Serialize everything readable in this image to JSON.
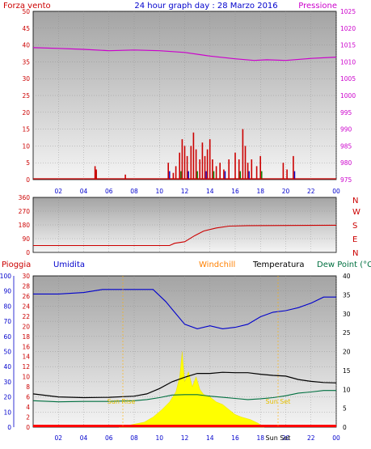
{
  "header": {
    "left": "Forza vento",
    "center": "24 hour graph day : 28 Marzo 2016",
    "right": "Pressione"
  },
  "compass": [
    "N",
    "W",
    "S",
    "E",
    "N"
  ],
  "bottom_legend": {
    "rain": "Pioggia",
    "humidity": "Umidita",
    "windchill": "Windchill",
    "temperature": "Temperatura",
    "dewpoint": "Dew Point (°C"
  },
  "annotations": {
    "sunrise": "Sun Rise",
    "sunset": "Sun Set",
    "sunset_axis": "Sun Set"
  },
  "colors": {
    "wind": "#cc0000",
    "gust_green": "#008000",
    "gust_blue": "#0000cc",
    "pressure": "#cc00cc",
    "humidity": "#0000cc",
    "temperature": "#000000",
    "dewpoint": "#007040",
    "solar": "#ffff00",
    "rain": "#ff0000",
    "windchill": "#ff8000"
  },
  "chart_data": [
    {
      "type": "bar",
      "panel": "wind-pressure",
      "xlabel": "",
      "x_ticks": [
        "02",
        "04",
        "06",
        "08",
        "10",
        "12",
        "14",
        "16",
        "18",
        "20",
        "22",
        "00"
      ],
      "y_left": {
        "label": "Forza vento",
        "lim": [
          0,
          50
        ],
        "ticks": [
          0,
          5,
          10,
          15,
          20,
          25,
          30,
          35,
          40,
          45,
          50
        ]
      },
      "y_right": {
        "label": "Pressione",
        "lim": [
          975,
          1025
        ],
        "ticks": [
          975,
          980,
          985,
          990,
          995,
          1000,
          1005,
          1010,
          1015,
          1020,
          1025
        ]
      },
      "series": [
        {
          "name": "Forza vento",
          "kind": "bars",
          "points": [
            [
              4.9,
              4
            ],
            [
              5.0,
              3
            ],
            [
              7.3,
              1.5
            ],
            [
              10.7,
              5
            ],
            [
              11.1,
              2
            ],
            [
              11.3,
              4
            ],
            [
              11.6,
              8
            ],
            [
              11.8,
              12
            ],
            [
              12.0,
              10
            ],
            [
              12.2,
              7
            ],
            [
              12.5,
              10
            ],
            [
              12.7,
              14
            ],
            [
              12.9,
              9
            ],
            [
              13.2,
              6
            ],
            [
              13.4,
              11
            ],
            [
              13.6,
              7
            ],
            [
              13.8,
              9
            ],
            [
              14.0,
              12
            ],
            [
              14.2,
              6
            ],
            [
              14.5,
              4
            ],
            [
              14.8,
              5
            ],
            [
              15.1,
              3
            ],
            [
              15.5,
              6
            ],
            [
              16.0,
              8
            ],
            [
              16.3,
              6
            ],
            [
              16.6,
              15
            ],
            [
              16.8,
              10
            ],
            [
              17.0,
              5
            ],
            [
              17.3,
              6
            ],
            [
              17.7,
              4
            ],
            [
              18.0,
              7
            ],
            [
              19.8,
              5
            ],
            [
              20.1,
              3
            ],
            [
              20.6,
              7
            ]
          ]
        },
        {
          "name": "Pressione",
          "kind": "line",
          "points": [
            [
              0,
              1014.2
            ],
            [
              2,
              1014.0
            ],
            [
              4,
              1013.7
            ],
            [
              6,
              1013.3
            ],
            [
              8,
              1013.5
            ],
            [
              10,
              1013.3
            ],
            [
              12,
              1012.8
            ],
            [
              14,
              1011.7
            ],
            [
              16,
              1010.9
            ],
            [
              17.5,
              1010.4
            ],
            [
              18.5,
              1010.6
            ],
            [
              20,
              1010.4
            ],
            [
              22,
              1011.0
            ],
            [
              24,
              1011.4
            ]
          ]
        }
      ]
    },
    {
      "type": "line",
      "panel": "wind-direction",
      "x_ticks": [
        "02",
        "04",
        "06",
        "08",
        "10",
        "12",
        "14",
        "16",
        "18",
        "20",
        "22",
        "00"
      ],
      "y_ticks": [
        0,
        90,
        180,
        270,
        360
      ],
      "ylim": [
        0,
        360
      ],
      "series": [
        {
          "name": "",
          "points": [
            [
              0,
              45
            ],
            [
              10.8,
              45
            ],
            [
              11.2,
              60
            ],
            [
              12.0,
              70
            ],
            [
              12.8,
              110
            ],
            [
              13.5,
              140
            ],
            [
              14.5,
              160
            ],
            [
              15.5,
              172
            ],
            [
              17.0,
              175
            ],
            [
              24.0,
              178
            ]
          ]
        }
      ]
    },
    {
      "type": "line",
      "panel": "temperature-humidity-rain",
      "x_ticks": [
        "02",
        "04",
        "06",
        "08",
        "10",
        "12",
        "14",
        "16",
        "18",
        "20",
        "22",
        "00"
      ],
      "y_humidity": {
        "label": "Umidita",
        "lim": [
          0,
          100
        ],
        "ticks": [
          0,
          10,
          20,
          30,
          40,
          50,
          60,
          70,
          80,
          90,
          100
        ]
      },
      "y_rain": {
        "label": "Pioggia",
        "lim": [
          0,
          30
        ],
        "ticks": [
          0,
          2,
          4,
          6,
          8,
          10,
          12,
          14,
          16,
          18,
          20,
          22,
          24,
          26,
          28,
          30
        ]
      },
      "y_temp": {
        "label": "Temperatura",
        "lim": [
          0,
          40
        ],
        "ticks": [
          0,
          5,
          10,
          15,
          20,
          25,
          30,
          35,
          40
        ]
      },
      "series": [
        {
          "name": "Umidita",
          "points": [
            [
              0,
              88
            ],
            [
              2,
              88
            ],
            [
              4,
              89
            ],
            [
              5.5,
              91
            ],
            [
              8,
              91
            ],
            [
              9.5,
              91
            ],
            [
              10.5,
              83
            ],
            [
              11.2,
              76
            ],
            [
              12,
              68
            ],
            [
              13,
              65
            ],
            [
              14,
              67
            ],
            [
              15,
              65
            ],
            [
              16,
              66
            ],
            [
              17,
              68
            ],
            [
              18,
              73
            ],
            [
              19,
              76
            ],
            [
              20,
              77
            ],
            [
              21,
              79
            ],
            [
              22,
              82
            ],
            [
              23,
              86
            ],
            [
              24,
              86
            ]
          ]
        },
        {
          "name": "Temperatura",
          "points": [
            [
              0,
              8.8
            ],
            [
              2,
              8.0
            ],
            [
              4,
              7.8
            ],
            [
              6,
              7.9
            ],
            [
              8,
              8.2
            ],
            [
              9,
              8.8
            ],
            [
              10,
              10.2
            ],
            [
              11,
              12.0
            ],
            [
              12,
              13.2
            ],
            [
              13,
              14.2
            ],
            [
              14,
              14.2
            ],
            [
              15,
              14.5
            ],
            [
              16,
              14.4
            ],
            [
              17,
              14.4
            ],
            [
              18,
              14.0
            ],
            [
              19,
              13.7
            ],
            [
              20,
              13.5
            ],
            [
              21,
              12.6
            ],
            [
              22,
              12.1
            ],
            [
              23,
              11.8
            ],
            [
              24,
              11.7
            ]
          ]
        },
        {
          "name": "Dew Point (°C",
          "points": [
            [
              0,
              7.0
            ],
            [
              2,
              6.7
            ],
            [
              4,
              6.8
            ],
            [
              6,
              6.8
            ],
            [
              8,
              7.0
            ],
            [
              9,
              7.3
            ],
            [
              10,
              7.8
            ],
            [
              11,
              8.5
            ],
            [
              12,
              8.6
            ],
            [
              13,
              8.6
            ],
            [
              14,
              8.2
            ],
            [
              15,
              7.9
            ],
            [
              16,
              7.6
            ],
            [
              17,
              7.3
            ],
            [
              18,
              7.5
            ],
            [
              19,
              7.8
            ],
            [
              20,
              8.3
            ],
            [
              21,
              9.0
            ],
            [
              22,
              9.3
            ],
            [
              23,
              9.7
            ],
            [
              24,
              9.7
            ]
          ]
        },
        {
          "name": "solar",
          "kind": "area",
          "scale_axis": "rain",
          "points": [
            [
              6.8,
              0
            ],
            [
              7.8,
              0.5
            ],
            [
              8.8,
              1.0
            ],
            [
              9.5,
              2.0
            ],
            [
              10.2,
              3.5
            ],
            [
              10.8,
              5.0
            ],
            [
              11.3,
              7.0
            ],
            [
              11.6,
              10.0
            ],
            [
              11.8,
              15.0
            ],
            [
              12.0,
              9.0
            ],
            [
              12.3,
              11.0
            ],
            [
              12.6,
              8.0
            ],
            [
              12.9,
              10.0
            ],
            [
              13.2,
              7.5
            ],
            [
              13.5,
              6.5
            ],
            [
              14.0,
              6.0
            ],
            [
              14.5,
              5.0
            ],
            [
              15.0,
              4.5
            ],
            [
              15.5,
              3.5
            ],
            [
              16.0,
              2.5
            ],
            [
              16.5,
              2.0
            ],
            [
              17.2,
              1.5
            ],
            [
              17.8,
              0.8
            ],
            [
              18.3,
              0
            ]
          ]
        },
        {
          "name": "Pioggia",
          "kind": "bars",
          "scale_axis": "rain",
          "points": []
        }
      ]
    }
  ]
}
